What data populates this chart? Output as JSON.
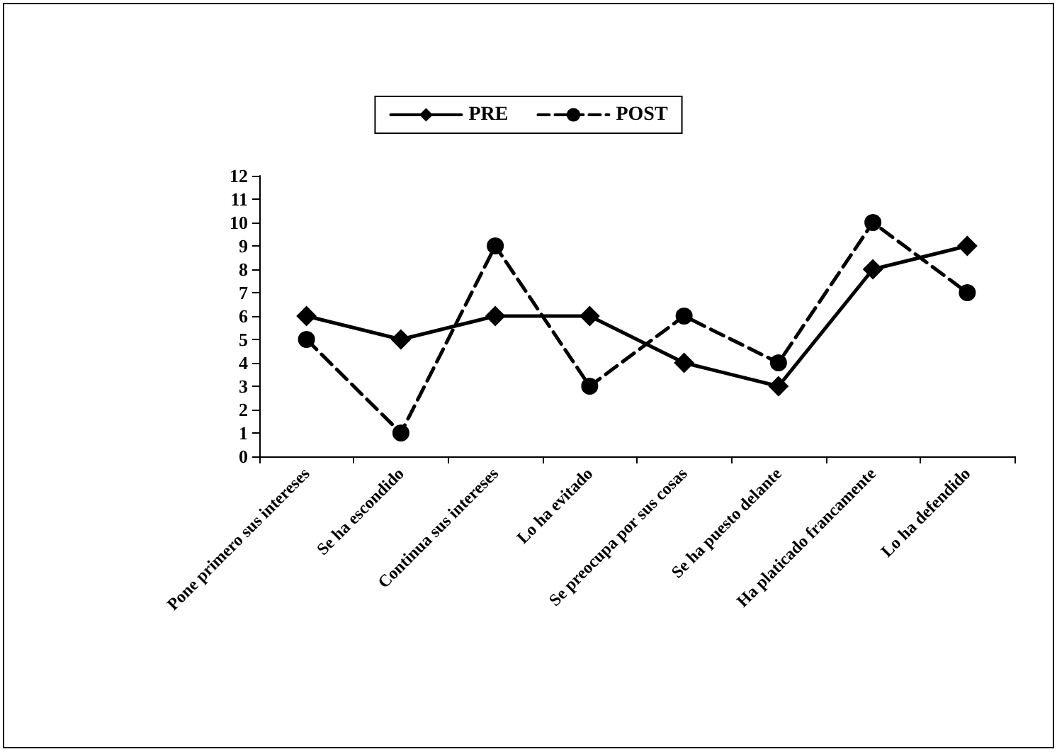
{
  "chart_data": {
    "type": "line",
    "categories": [
      "Pone primero sus intereses",
      "Se ha escondido",
      "Continua sus intereses",
      "Lo ha evitado",
      "Se preocupa por sus cosas",
      "Se ha puesto delante",
      "Ha platicado francamente",
      "Lo ha defendido"
    ],
    "series": [
      {
        "name": "PRE",
        "color": "#000000",
        "marker": "diamond",
        "line_style": "solid",
        "values": [
          6,
          5,
          6,
          6,
          4,
          3,
          8,
          9
        ]
      },
      {
        "name": "POST",
        "color": "#000000",
        "marker": "circle",
        "line_style": "dashed",
        "values": [
          5,
          1,
          9,
          3,
          6,
          4,
          10,
          7
        ]
      }
    ],
    "ylim": [
      0,
      12
    ],
    "yticks": [
      0,
      1,
      2,
      3,
      4,
      5,
      6,
      7,
      8,
      9,
      10,
      11,
      12
    ],
    "grid": false,
    "legend": "top"
  }
}
